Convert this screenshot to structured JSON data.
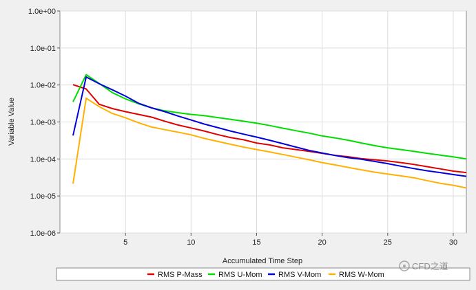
{
  "chart_data": {
    "type": "line",
    "xlabel": "Accumulated Time Step",
    "ylabel": "Variable Value",
    "y_scale": "log",
    "xlim": [
      0,
      31
    ],
    "ylim": [
      1e-06,
      1
    ],
    "x_ticks": [
      5,
      10,
      15,
      20,
      25,
      30
    ],
    "x_tick_labels": [
      "5",
      "10",
      "15",
      "20",
      "25",
      "30"
    ],
    "y_ticks": [
      1e-06,
      1e-05,
      0.0001,
      0.001,
      0.01,
      0.1,
      1
    ],
    "y_tick_labels": [
      "1.0e-06",
      "1.0e-05",
      "1.0e-04",
      "1.0e-03",
      "1.0e-02",
      "1.0e-01",
      "1.0e+00"
    ],
    "grid": true,
    "legend_position": "bottom",
    "x": [
      1,
      2,
      3,
      4,
      5,
      6,
      7,
      8,
      9,
      10,
      11,
      12,
      13,
      14,
      15,
      16,
      17,
      18,
      19,
      20,
      21,
      22,
      23,
      24,
      25,
      26,
      27,
      28,
      29,
      30,
      31
    ],
    "series": [
      {
        "name": "RMS P-Mass",
        "color": "#e00000",
        "values": [
          0.0102,
          0.0078,
          0.003,
          0.0023,
          0.0019,
          0.0016,
          0.00135,
          0.00105,
          0.00083,
          0.00069,
          0.00057,
          0.00046,
          0.00038,
          0.00033,
          0.00027,
          0.00024,
          0.0002,
          0.00018,
          0.00016,
          0.000142,
          0.000125,
          0.000115,
          0.000102,
          9.5e-05,
          8.8e-05,
          8e-05,
          7.1e-05,
          6.2e-05,
          5.4e-05,
          4.7e-05,
          4.3e-05
        ]
      },
      {
        "name": "RMS U-Mom",
        "color": "#00dd00",
        "values": [
          0.0035,
          0.019,
          0.011,
          0.0062,
          0.0042,
          0.0031,
          0.0024,
          0.002,
          0.00178,
          0.0016,
          0.00148,
          0.00132,
          0.00118,
          0.00105,
          0.00093,
          0.0008,
          0.00068,
          0.00058,
          0.0005,
          0.00042,
          0.00037,
          0.00032,
          0.00027,
          0.00023,
          0.0002,
          0.00018,
          0.00016,
          0.000142,
          0.000127,
          0.000114,
          0.0001
        ]
      },
      {
        "name": "RMS V-Mom",
        "color": "#0000dd",
        "values": [
          0.00043,
          0.0165,
          0.0108,
          0.0074,
          0.005,
          0.0032,
          0.0024,
          0.0019,
          0.00145,
          0.00113,
          0.00088,
          0.00071,
          0.00057,
          0.00047,
          0.00039,
          0.00032,
          0.00026,
          0.00021,
          0.00017,
          0.000145,
          0.000124,
          0.000108,
          9.8e-05,
          8.6e-05,
          7.5e-05,
          6.4e-05,
          5.5e-05,
          4.8e-05,
          4.3e-05,
          3.8e-05,
          3.4e-05
        ]
      },
      {
        "name": "RMS W-Mom",
        "color": "#ffb000",
        "values": [
          2.15e-05,
          0.0044,
          0.0026,
          0.0017,
          0.0013,
          0.00095,
          0.00073,
          0.00062,
          0.00053,
          0.00045,
          0.00036,
          0.0003,
          0.00025,
          0.00021,
          0.00018,
          0.000155,
          0.000132,
          0.000112,
          9.5e-05,
          8e-05,
          6.9e-05,
          5.9e-05,
          5.1e-05,
          4.4e-05,
          3.9e-05,
          3.5e-05,
          3.1e-05,
          2.6e-05,
          2.2e-05,
          1.95e-05,
          1.65e-05
        ]
      }
    ]
  },
  "watermark": "CFD之道"
}
